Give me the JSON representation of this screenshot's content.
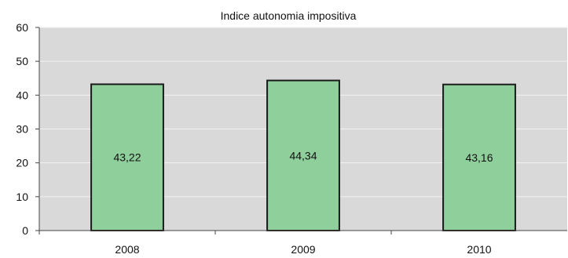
{
  "chart_data": {
    "type": "bar",
    "title": "Indice autonomia impositiva",
    "categories": [
      "2008",
      "2009",
      "2010"
    ],
    "values": [
      43.22,
      44.34,
      43.16
    ],
    "data_labels": [
      "43,22",
      "44,34",
      "43,16"
    ],
    "ylim": [
      0,
      60
    ],
    "yticks": [
      "0",
      "10",
      "20",
      "30",
      "40",
      "50",
      "60"
    ],
    "grid": true,
    "legend": "none",
    "colors": {
      "bar_fill": "#8fcf9b",
      "bar_stroke": "#1a1a1a",
      "plot_background": "#d9d9d9",
      "gridline": "#f2f2f2"
    }
  }
}
